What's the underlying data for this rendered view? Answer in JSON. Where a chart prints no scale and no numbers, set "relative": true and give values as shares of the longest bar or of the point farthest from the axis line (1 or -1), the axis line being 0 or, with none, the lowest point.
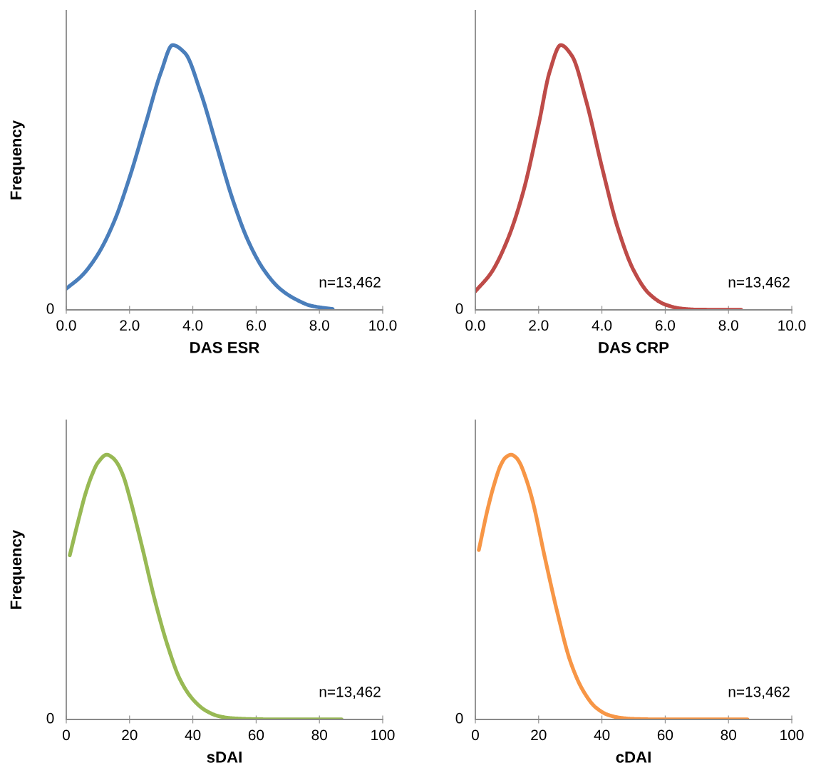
{
  "chart_data": [
    {
      "type": "line",
      "relative": true,
      "xlabel": "DAS ESR",
      "ylabel": "Frequency",
      "xlim": [
        0,
        10
      ],
      "xticks": [
        {
          "value": 0,
          "label": "0.0"
        },
        {
          "value": 2,
          "label": "2.0"
        },
        {
          "value": 4,
          "label": "4.0"
        },
        {
          "value": 6,
          "label": "6.0"
        },
        {
          "value": 8,
          "label": "8.0"
        },
        {
          "value": 10,
          "label": "10.0"
        }
      ],
      "annotations": [
        "n=13,462",
        "0"
      ],
      "x": [
        0,
        0.5,
        1.0,
        1.5,
        2.0,
        2.5,
        3.0,
        3.36,
        3.75,
        4.25,
        4.75,
        5.25,
        5.75,
        6.25,
        6.75,
        7.25,
        7.75,
        8.42
      ],
      "series": [
        {
          "color": "#4a7ebb",
          "values": [
            0.08,
            0.13,
            0.21,
            0.33,
            0.5,
            0.7,
            0.9,
            1.0,
            0.97,
            0.82,
            0.62,
            0.42,
            0.26,
            0.15,
            0.08,
            0.04,
            0.015,
            0.003
          ]
        }
      ]
    },
    {
      "type": "line",
      "relative": true,
      "xlabel": "DAS CRP",
      "xlim": [
        0,
        10
      ],
      "xticks": [
        {
          "value": 0,
          "label": "0.0"
        },
        {
          "value": 2,
          "label": "2.0"
        },
        {
          "value": 4,
          "label": "4.0"
        },
        {
          "value": 6,
          "label": "6.0"
        },
        {
          "value": 8,
          "label": "8.0"
        },
        {
          "value": 10,
          "label": "10.0"
        }
      ],
      "annotations": [
        "n=13,462",
        "0"
      ],
      "x": [
        0,
        0.5,
        1.0,
        1.5,
        2.0,
        2.35,
        2.7,
        3.05,
        3.5,
        4.0,
        4.5,
        5.0,
        5.5,
        6.0,
        6.5,
        7.0,
        8.4
      ],
      "series": [
        {
          "color": "#be4b48",
          "values": [
            0.07,
            0.14,
            0.26,
            0.44,
            0.7,
            0.9,
            1.0,
            0.96,
            0.79,
            0.54,
            0.31,
            0.15,
            0.06,
            0.02,
            0.005,
            0.001,
            0
          ]
        }
      ]
    },
    {
      "type": "line",
      "relative": true,
      "xlabel": "sDAI",
      "ylabel": "Frequency",
      "xlim": [
        0,
        100
      ],
      "xticks": [
        0,
        20,
        40,
        60,
        80,
        100
      ],
      "annotations": [
        "n=13,462",
        "0"
      ],
      "x": [
        1.1,
        4,
        6,
        8,
        10,
        12.8,
        14.5,
        16,
        18,
        20,
        24,
        28,
        32,
        36,
        40,
        44,
        48,
        52,
        60,
        70,
        87
      ],
      "series": [
        {
          "color": "#98b954",
          "values": [
            0.62,
            0.76,
            0.85,
            0.92,
            0.97,
            1.0,
            0.99,
            0.97,
            0.92,
            0.84,
            0.65,
            0.45,
            0.28,
            0.15,
            0.076,
            0.034,
            0.013,
            0.005,
            0.001,
            0,
            0
          ]
        }
      ]
    },
    {
      "type": "line",
      "relative": true,
      "xlabel": "cDAI",
      "xlim": [
        0,
        100
      ],
      "xticks": [
        0,
        20,
        40,
        60,
        80,
        100
      ],
      "annotations": [
        "n=13,462",
        "0"
      ],
      "x": [
        1.1,
        4,
        6,
        8,
        9.6,
        11.3,
        12.8,
        14,
        16,
        18,
        22,
        26,
        30,
        34,
        38,
        42,
        46,
        50,
        60,
        70,
        86
      ],
      "series": [
        {
          "color": "#f79646",
          "values": [
            0.64,
            0.8,
            0.89,
            0.96,
            0.99,
            1.0,
            0.99,
            0.97,
            0.91,
            0.83,
            0.61,
            0.4,
            0.22,
            0.11,
            0.046,
            0.017,
            0.006,
            0.002,
            0,
            0,
            0
          ]
        }
      ]
    }
  ]
}
